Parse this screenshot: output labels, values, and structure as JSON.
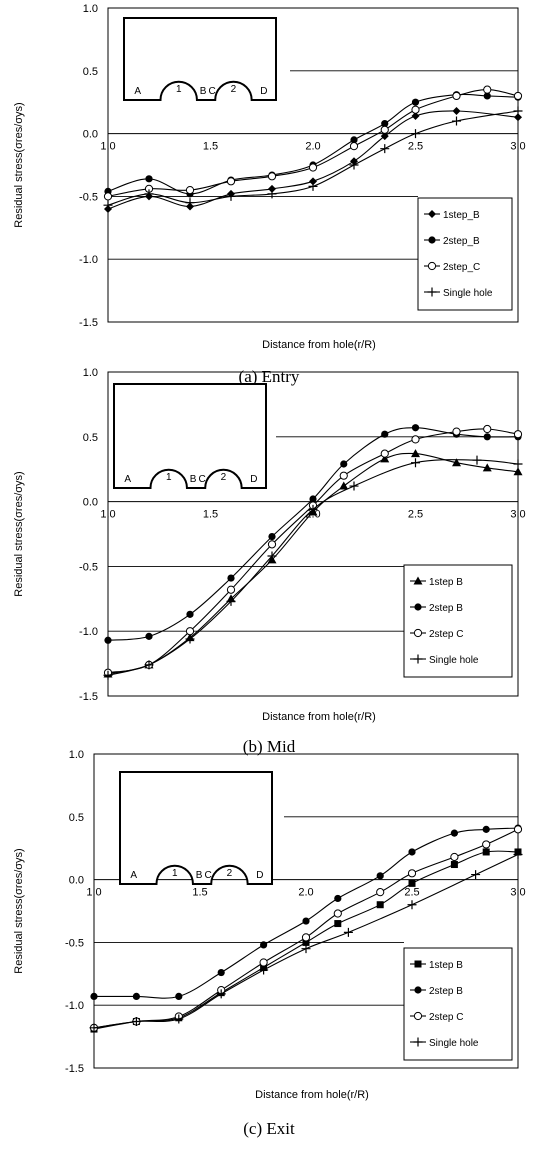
{
  "chart_data": [
    {
      "type": "line",
      "caption": "(a) Entry",
      "xlabel": "Distance from hole(r/R)",
      "ylabel": "Residual stress(σres/σys)",
      "xlim": [
        1.0,
        3.0
      ],
      "ylim": [
        -1.5,
        1.0
      ],
      "xticks": [
        "1.0",
        "1.5",
        "2.0",
        "2.5",
        "3.0"
      ],
      "yticks": [
        "1.0",
        "0.5",
        "0.0",
        "-0.5",
        "-1.0",
        "-1.5"
      ],
      "grid": "horizontal",
      "legend_position": "bottom-right",
      "inset_labels": [
        "A",
        "1",
        "B",
        "C",
        "2",
        "D"
      ],
      "series": [
        {
          "name": "1step_B",
          "marker": "diamond",
          "x": [
            1.0,
            1.2,
            1.4,
            1.6,
            1.8,
            2.0,
            2.2,
            2.35,
            2.5,
            2.7,
            3.0
          ],
          "y": [
            -0.6,
            -0.5,
            -0.58,
            -0.48,
            -0.44,
            -0.38,
            -0.22,
            -0.02,
            0.14,
            0.18,
            0.13
          ]
        },
        {
          "name": "2step_B",
          "marker": "filled-circle",
          "x": [
            1.0,
            1.2,
            1.4,
            1.6,
            1.8,
            2.0,
            2.2,
            2.35,
            2.5,
            2.7,
            2.85,
            3.0
          ],
          "y": [
            -0.46,
            -0.36,
            -0.48,
            -0.37,
            -0.33,
            -0.25,
            -0.05,
            0.08,
            0.25,
            0.31,
            0.3,
            0.29
          ]
        },
        {
          "name": "2step_C",
          "marker": "open-circle",
          "x": [
            1.0,
            1.2,
            1.4,
            1.6,
            1.8,
            2.0,
            2.2,
            2.35,
            2.5,
            2.7,
            2.85,
            3.0
          ],
          "y": [
            -0.5,
            -0.44,
            -0.45,
            -0.38,
            -0.34,
            -0.27,
            -0.1,
            0.03,
            0.19,
            0.3,
            0.35,
            0.3
          ]
        },
        {
          "name": "Single hole",
          "marker": "plus",
          "x": [
            1.0,
            1.2,
            1.4,
            1.6,
            1.8,
            2.0,
            2.2,
            2.35,
            2.5,
            2.7,
            3.0
          ],
          "y": [
            -0.57,
            -0.48,
            -0.55,
            -0.5,
            -0.48,
            -0.42,
            -0.25,
            -0.12,
            0.0,
            0.1,
            0.18
          ]
        }
      ]
    },
    {
      "type": "line",
      "caption": "(b) Mid",
      "xlabel": "Distance from hole(r/R)",
      "ylabel": "Residual stress(σres/σys)",
      "xlim": [
        1.0,
        3.0
      ],
      "ylim": [
        -1.5,
        1.0
      ],
      "xticks": [
        "1.0",
        "1.5",
        "2.0",
        "2.5",
        "3.0"
      ],
      "yticks": [
        "1.0",
        "0.5",
        "0.0",
        "-0.5",
        "-1.0",
        "-1.5"
      ],
      "grid": "horizontal",
      "legend_position": "bottom-right",
      "inset_labels": [
        "A",
        "1",
        "B",
        "C",
        "2",
        "D"
      ],
      "series": [
        {
          "name": "1step B",
          "marker": "filled-triangle",
          "x": [
            1.0,
            1.2,
            1.4,
            1.6,
            1.8,
            2.0,
            2.15,
            2.35,
            2.5,
            2.7,
            2.85,
            3.0
          ],
          "y": [
            -1.33,
            -1.26,
            -1.05,
            -0.75,
            -0.45,
            -0.08,
            0.12,
            0.33,
            0.37,
            0.3,
            0.26,
            0.23
          ]
        },
        {
          "name": "2step B",
          "marker": "filled-circle",
          "x": [
            1.0,
            1.2,
            1.4,
            1.6,
            1.8,
            2.0,
            2.15,
            2.35,
            2.5,
            2.7,
            2.85,
            3.0
          ],
          "y": [
            -1.07,
            -1.04,
            -0.87,
            -0.59,
            -0.27,
            0.02,
            0.29,
            0.52,
            0.57,
            0.52,
            0.5,
            0.5
          ]
        },
        {
          "name": "2step C",
          "marker": "open-circle",
          "x": [
            1.0,
            1.2,
            1.4,
            1.6,
            1.8,
            2.0,
            2.15,
            2.35,
            2.5,
            2.7,
            2.85,
            3.0
          ],
          "y": [
            -1.32,
            -1.26,
            -1.0,
            -0.68,
            -0.33,
            -0.03,
            0.2,
            0.37,
            0.48,
            0.54,
            0.56,
            0.52
          ]
        },
        {
          "name": "Single hole",
          "marker": "plus",
          "x": [
            1.0,
            1.2,
            1.4,
            1.6,
            1.8,
            2.0,
            2.2,
            2.5,
            2.8,
            3.0
          ],
          "y": [
            -1.34,
            -1.26,
            -1.06,
            -0.77,
            -0.42,
            -0.06,
            0.12,
            0.3,
            0.32,
            0.29
          ]
        }
      ]
    },
    {
      "type": "line",
      "caption": "(c) Exit",
      "xlabel": "Distance from hole(r/R)",
      "ylabel": "Residual stress(σres/σys)",
      "xlim": [
        1.0,
        3.0
      ],
      "ylim": [
        -1.5,
        1.0
      ],
      "xticks": [
        "1.0",
        "1.5",
        "2.0",
        "2.5",
        "3.0"
      ],
      "yticks": [
        "1.0",
        "0.5",
        "0.0",
        "-0.5",
        "-1.0",
        "-1.5"
      ],
      "grid": "horizontal",
      "legend_position": "bottom-right",
      "inset_labels": [
        "A",
        "1",
        "B",
        "C",
        "2",
        "D"
      ],
      "series": [
        {
          "name": "1step B",
          "marker": "filled-square",
          "x": [
            1.0,
            1.2,
            1.4,
            1.6,
            1.8,
            2.0,
            2.15,
            2.35,
            2.5,
            2.7,
            2.85,
            3.0
          ],
          "y": [
            -1.19,
            -1.13,
            -1.1,
            -0.9,
            -0.7,
            -0.5,
            -0.35,
            -0.2,
            -0.03,
            0.12,
            0.22,
            0.22
          ]
        },
        {
          "name": "2step B",
          "marker": "filled-circle",
          "x": [
            1.0,
            1.2,
            1.4,
            1.6,
            1.8,
            2.0,
            2.15,
            2.35,
            2.5,
            2.7,
            2.85,
            3.0
          ],
          "y": [
            -0.93,
            -0.93,
            -0.93,
            -0.74,
            -0.52,
            -0.33,
            -0.15,
            0.03,
            0.22,
            0.37,
            0.4,
            0.41
          ]
        },
        {
          "name": "2step C",
          "marker": "open-circle",
          "x": [
            1.0,
            1.2,
            1.4,
            1.6,
            1.8,
            2.0,
            2.15,
            2.35,
            2.5,
            2.7,
            2.85,
            3.0
          ],
          "y": [
            -1.18,
            -1.13,
            -1.09,
            -0.88,
            -0.66,
            -0.46,
            -0.27,
            -0.1,
            0.05,
            0.18,
            0.28,
            0.4
          ]
        },
        {
          "name": "Single hole",
          "marker": "plus",
          "x": [
            1.0,
            1.2,
            1.4,
            1.6,
            1.8,
            2.0,
            2.2,
            2.5,
            2.8,
            3.0
          ],
          "y": [
            -1.18,
            -1.13,
            -1.11,
            -0.91,
            -0.72,
            -0.55,
            -0.42,
            -0.2,
            0.04,
            0.2
          ]
        }
      ]
    }
  ]
}
